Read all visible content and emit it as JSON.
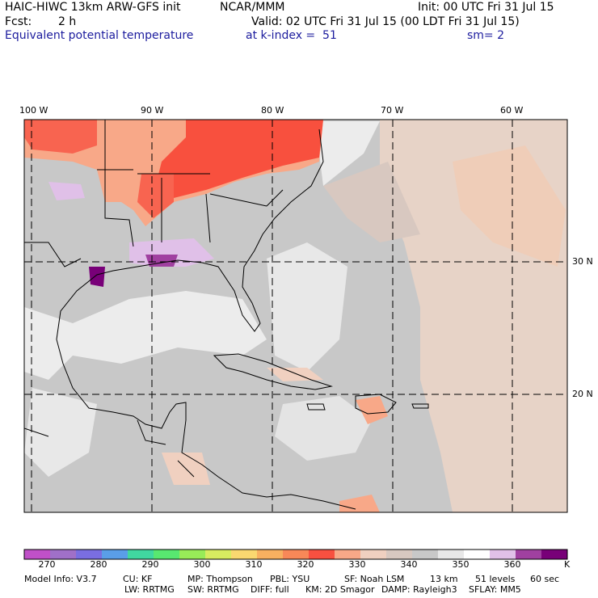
{
  "header": {
    "model": "HAIC-HIWC 13km ARW-GFS init",
    "org": "NCAR/MMM",
    "init": "Init: 00 UTC Fri 31 Jul 15",
    "fcst_label": "Fcst:",
    "fcst_value": "2 h",
    "valid": "Valid: 02 UTC Fri 31 Jul 15 (00 LDT Fri 31 Jul 15)",
    "field": "Equivalent potential temperature",
    "level": "at k-index =  51",
    "smoothing": "sm= 2"
  },
  "map": {
    "lon_labels": [
      "100 W",
      "90 W",
      "80 W",
      "70 W",
      "60 W"
    ],
    "lat_labels": [
      "30 N",
      "20 N"
    ],
    "background_color": "#c8c8c8",
    "warm_color": "#f96a50",
    "cool_color": "#c090e0"
  },
  "colorbar": {
    "unit": "K",
    "ticks": [
      "270",
      "280",
      "290",
      "300",
      "310",
      "320",
      "330",
      "340",
      "350",
      "360"
    ],
    "colors": [
      "#c050c8",
      "#a070c8",
      "#7a6ee0",
      "#5a9ee8",
      "#40d8a0",
      "#58e870",
      "#98ec58",
      "#d8ec60",
      "#fad870",
      "#f8b060",
      "#f88858",
      "#f85040",
      "#f8a888",
      "#f0d0c0",
      "#d8c8c0",
      "#c8c8c8",
      "#e8e8e8",
      "#ffffff",
      "#e0c0e8",
      "#a040a0",
      "#780078"
    ]
  },
  "footer": {
    "line1": [
      "Model Info: V3.7",
      "CU: KF",
      "MP: Thompson",
      "PBL: YSU",
      "SF: Noah LSM",
      "13 km",
      "51 levels",
      "60 sec"
    ],
    "line2": [
      "LW: RRTMG",
      "SW: RRTMG",
      "DIFF: full",
      "KM: 2D Smagor",
      "DAMP: Rayleigh3",
      "SFLAY: MM5"
    ]
  }
}
